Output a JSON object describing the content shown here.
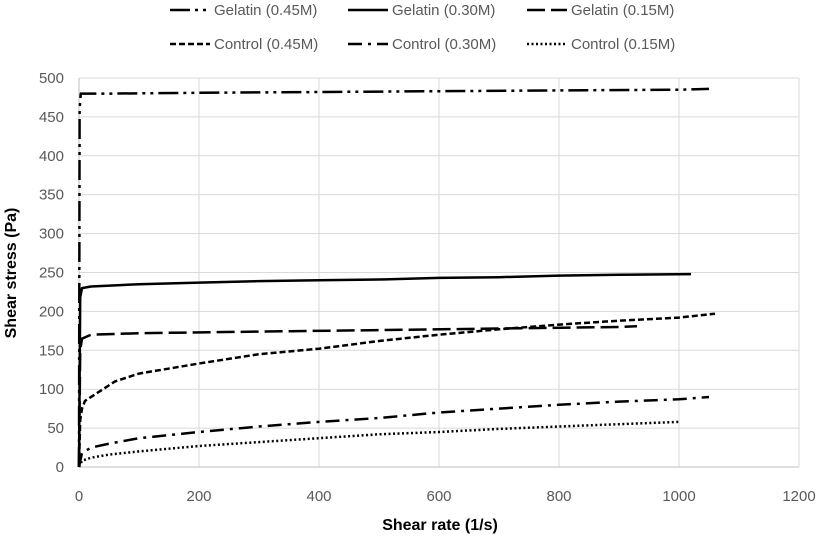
{
  "chart_data": {
    "type": "line",
    "xlabel": "Shear rate (1/s)",
    "ylabel": "Shear stress (Pa)",
    "xlim": [
      0,
      1200
    ],
    "ylim": [
      0,
      500
    ],
    "xticks": [
      0,
      200,
      400,
      600,
      800,
      1000,
      1200
    ],
    "yticks": [
      0,
      50,
      100,
      150,
      200,
      250,
      300,
      350,
      400,
      450,
      500
    ],
    "grid": "both",
    "legend_position": "top",
    "series": [
      {
        "name": "Gelatin (0.45M)",
        "dash": "long-dash-dot-dot",
        "color": "#000000",
        "points": [
          [
            0,
            0
          ],
          [
            1,
            460
          ],
          [
            3,
            480
          ],
          [
            50,
            480
          ],
          [
            200,
            481
          ],
          [
            400,
            482
          ],
          [
            600,
            483
          ],
          [
            800,
            484
          ],
          [
            1000,
            485
          ],
          [
            1050,
            486
          ]
        ]
      },
      {
        "name": "Gelatin (0.30M)",
        "dash": "solid",
        "color": "#000000",
        "points": [
          [
            0,
            0
          ],
          [
            2,
            218
          ],
          [
            5,
            230
          ],
          [
            20,
            232
          ],
          [
            100,
            235
          ],
          [
            200,
            237
          ],
          [
            300,
            239
          ],
          [
            400,
            240
          ],
          [
            500,
            241
          ],
          [
            600,
            243
          ],
          [
            700,
            244
          ],
          [
            800,
            246
          ],
          [
            900,
            247
          ],
          [
            1020,
            248
          ]
        ]
      },
      {
        "name": "Gelatin (0.15M)",
        "dash": "long-dash",
        "color": "#000000",
        "points": [
          [
            0,
            0
          ],
          [
            2,
            150
          ],
          [
            5,
            165
          ],
          [
            20,
            170
          ],
          [
            100,
            172
          ],
          [
            300,
            174
          ],
          [
            500,
            176
          ],
          [
            700,
            178
          ],
          [
            900,
            180
          ],
          [
            930,
            181
          ]
        ]
      },
      {
        "name": "Control (0.45M)",
        "dash": "short-dash",
        "color": "#000000",
        "points": [
          [
            0,
            0
          ],
          [
            2,
            60
          ],
          [
            5,
            75
          ],
          [
            10,
            85
          ],
          [
            30,
            95
          ],
          [
            60,
            110
          ],
          [
            100,
            120
          ],
          [
            200,
            133
          ],
          [
            300,
            145
          ],
          [
            400,
            152
          ],
          [
            500,
            162
          ],
          [
            600,
            170
          ],
          [
            700,
            177
          ],
          [
            800,
            183
          ],
          [
            900,
            188
          ],
          [
            1000,
            192
          ],
          [
            1060,
            197
          ]
        ]
      },
      {
        "name": "Control (0.30M)",
        "dash": "dash-dot",
        "color": "#000000",
        "points": [
          [
            0,
            0
          ],
          [
            5,
            18
          ],
          [
            20,
            25
          ],
          [
            50,
            30
          ],
          [
            100,
            37
          ],
          [
            200,
            45
          ],
          [
            300,
            52
          ],
          [
            400,
            58
          ],
          [
            500,
            63
          ],
          [
            600,
            70
          ],
          [
            700,
            75
          ],
          [
            800,
            80
          ],
          [
            900,
            84
          ],
          [
            1000,
            87
          ],
          [
            1050,
            90
          ]
        ]
      },
      {
        "name": "Control (0.15M)",
        "dash": "dotted",
        "color": "#000000",
        "points": [
          [
            0,
            0
          ],
          [
            5,
            8
          ],
          [
            20,
            12
          ],
          [
            50,
            16
          ],
          [
            100,
            20
          ],
          [
            200,
            27
          ],
          [
            300,
            32
          ],
          [
            400,
            37
          ],
          [
            500,
            42
          ],
          [
            600,
            45
          ],
          [
            700,
            49
          ],
          [
            800,
            52
          ],
          [
            900,
            55
          ],
          [
            1000,
            58
          ]
        ]
      }
    ]
  }
}
